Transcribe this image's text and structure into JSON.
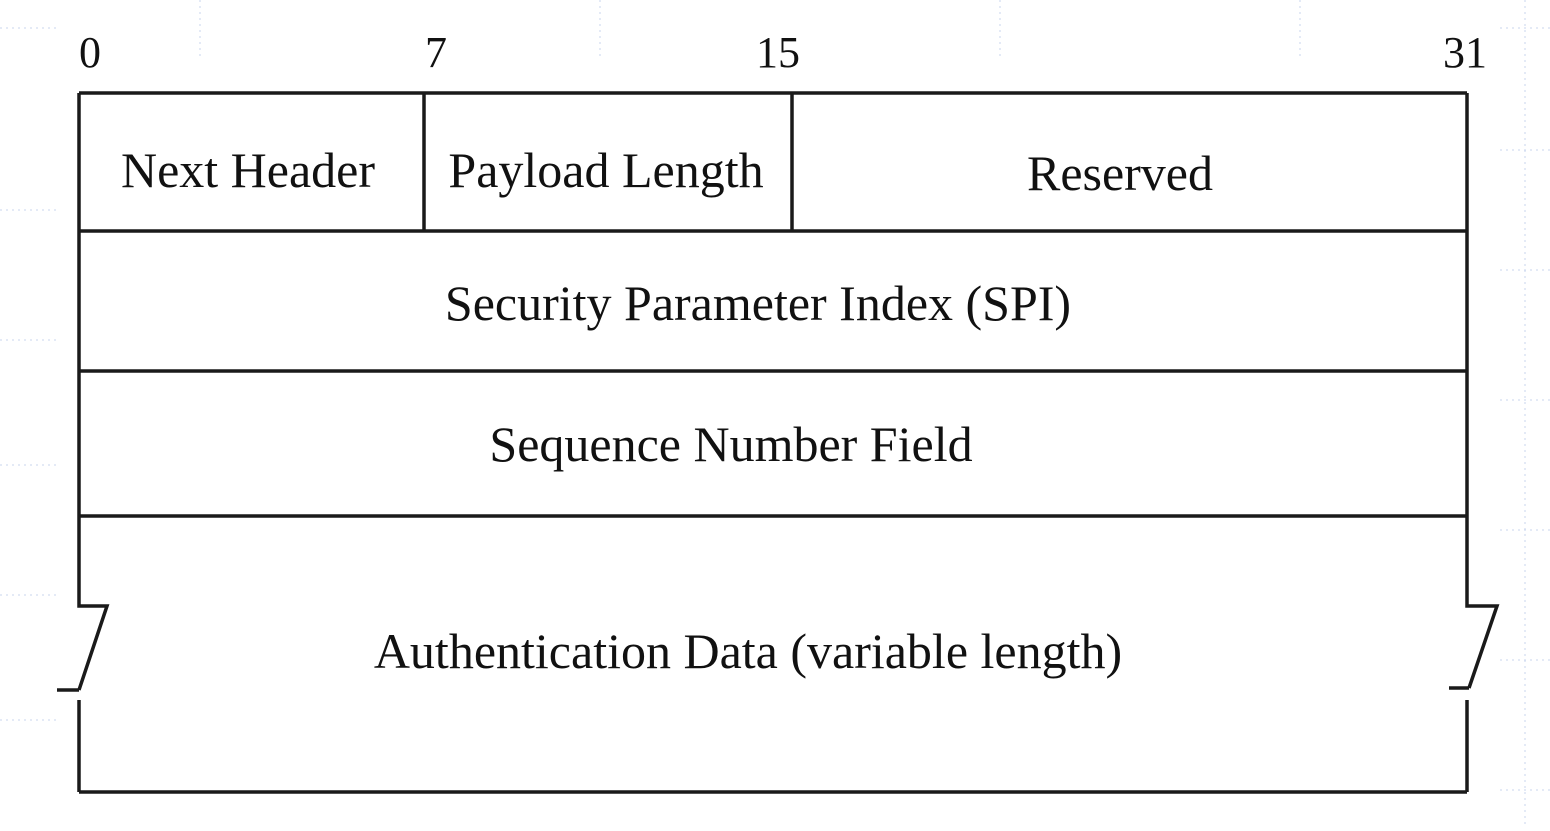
{
  "diagram": {
    "bit_positions": [
      "0",
      "7",
      "15",
      "31"
    ],
    "rows": [
      {
        "fields": [
          "Next Header",
          "Payload Length",
          "Reserved"
        ]
      },
      {
        "fields": [
          "Security Parameter Index (SPI)"
        ]
      },
      {
        "fields": [
          "Sequence Number Field"
        ]
      },
      {
        "fields": [
          "Authentication Data (variable length)"
        ]
      }
    ],
    "colors": {
      "line": "#1a1a1a",
      "text": "#111111",
      "background_grid": "#c9d4ec"
    }
  }
}
